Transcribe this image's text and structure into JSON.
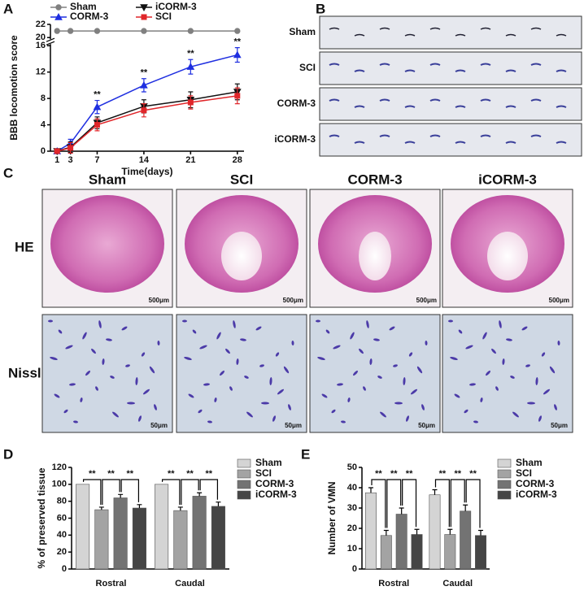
{
  "figure": {
    "panel_labels": [
      "A",
      "B",
      "C",
      "D",
      "E"
    ],
    "B": {
      "rows": [
        "Sham",
        "SCI",
        "CORM-3",
        "iCORM-3"
      ]
    },
    "C": {
      "columns": [
        "Sham",
        "SCI",
        "CORM-3",
        "iCORM-3"
      ],
      "rows": [
        "HE",
        "Nissl"
      ],
      "scale_bars": [
        "500μm",
        "50μm"
      ]
    }
  },
  "chart_data": [
    {
      "type": "line",
      "x_label": "Time(days)",
      "y_label": "BBB locomotion score",
      "x": [
        1,
        3,
        7,
        14,
        21,
        28
      ],
      "xlim": [
        0,
        29
      ],
      "xticks": [
        1,
        3,
        7,
        14,
        21,
        28
      ],
      "ylim": [
        0,
        22
      ],
      "yticks": [
        0,
        4,
        8,
        12,
        16,
        20,
        22
      ],
      "y_break": [
        16,
        20
      ],
      "series": [
        {
          "name": "Sham",
          "color": "#808080",
          "marker": "circle",
          "values": [
            21,
            21,
            21,
            21,
            21,
            21
          ]
        },
        {
          "name": "CORM-3",
          "color": "#1f2fe0",
          "marker": "triangle",
          "values": [
            0,
            1.2,
            6.7,
            10,
            12.8,
            14.6
          ],
          "errors": [
            0.3,
            0.6,
            1,
            1,
            1.1,
            1.1
          ]
        },
        {
          "name": "iCORM-3",
          "color": "#111111",
          "marker": "triangle-down",
          "values": [
            0,
            0.6,
            4.3,
            6.8,
            7.8,
            9
          ],
          "errors": [
            0.3,
            0.8,
            0.9,
            1,
            1.2,
            1.2
          ]
        },
        {
          "name": "SCI",
          "color": "#e0262a",
          "marker": "square",
          "values": [
            0,
            0.5,
            4,
            6.2,
            7.4,
            8.4
          ],
          "errors": [
            0.3,
            0.8,
            0.9,
            1,
            1,
            1.2
          ]
        }
      ],
      "annotations": [
        {
          "x": 7,
          "label": "**"
        },
        {
          "x": 14,
          "label": "**"
        },
        {
          "x": 21,
          "label": "**"
        },
        {
          "x": 28,
          "label": "**"
        }
      ]
    },
    {
      "type": "bar",
      "y_label": "% of preserved tissue",
      "categories": [
        "Rostral",
        "Caudal"
      ],
      "ylim": [
        0,
        120
      ],
      "yticks": [
        0,
        20,
        40,
        60,
        80,
        100,
        120
      ],
      "significance_label": "**",
      "series": [
        {
          "name": "Sham",
          "color": "#d4d4d4",
          "values": [
            100,
            100
          ]
        },
        {
          "name": "SCI",
          "color": "#a3a3a3",
          "values": [
            70,
            69
          ],
          "errors": [
            3,
            4
          ]
        },
        {
          "name": "CORM-3",
          "color": "#737373",
          "values": [
            84,
            86
          ],
          "errors": [
            4,
            4
          ]
        },
        {
          "name": "iCORM-3",
          "color": "#454545",
          "values": [
            72,
            74
          ],
          "errors": [
            4,
            5
          ]
        }
      ]
    },
    {
      "type": "bar",
      "y_label": "Number of VMN",
      "categories": [
        "Rostral",
        "Caudal"
      ],
      "ylim": [
        0,
        50
      ],
      "yticks": [
        0,
        10,
        20,
        30,
        40,
        50
      ],
      "significance_label": "**",
      "series": [
        {
          "name": "Sham",
          "color": "#d4d4d4",
          "values": [
            37.5,
            36.5
          ],
          "errors": [
            2.5,
            2.5
          ]
        },
        {
          "name": "SCI",
          "color": "#a3a3a3",
          "values": [
            16.5,
            17
          ],
          "errors": [
            2.5,
            2.5
          ]
        },
        {
          "name": "CORM-3",
          "color": "#737373",
          "values": [
            27,
            28.5
          ],
          "errors": [
            3,
            3
          ]
        },
        {
          "name": "iCORM-3",
          "color": "#454545",
          "values": [
            17,
            16.5
          ],
          "errors": [
            2.5,
            2.5
          ]
        }
      ]
    }
  ]
}
